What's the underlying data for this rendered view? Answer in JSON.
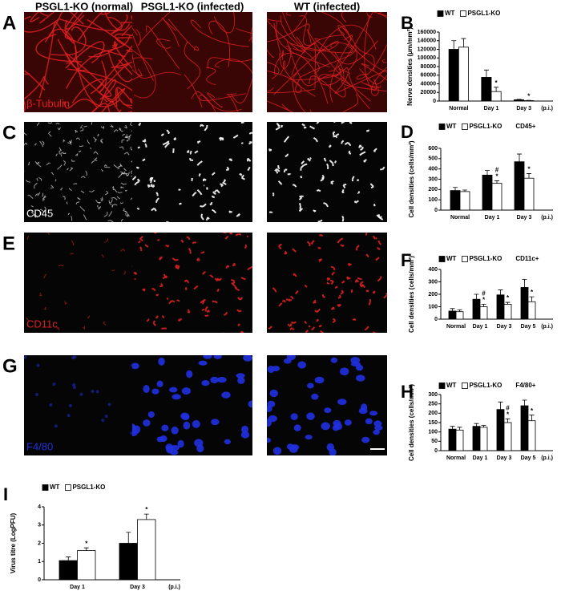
{
  "images": {
    "columns": [
      "PSGL1-KO (normal)",
      "PSGL1-KO (infected)",
      "WT (infected)"
    ],
    "rows": [
      {
        "panel": "A",
        "label": "β-Tubulin",
        "color": "#e02020"
      },
      {
        "panel": "C",
        "label": "CD45",
        "color": "#ffffff"
      },
      {
        "panel": "E",
        "label": "CD11c",
        "color": "#e02020"
      },
      {
        "panel": "G",
        "label": "F4/80",
        "color": "#2030e0"
      }
    ]
  },
  "chart_data": [
    {
      "type": "bar",
      "panel": "B",
      "ylabel": "Nerve densities (μm/mm²)",
      "x_suffix": "(p.i.)",
      "categories": [
        "Normal",
        "Day 1",
        "Day 3"
      ],
      "ylim": [
        0,
        160000
      ],
      "yticks": [
        0,
        20000,
        40000,
        60000,
        80000,
        100000,
        120000,
        140000,
        160000
      ],
      "series": [
        {
          "name": "WT",
          "color": "#000000",
          "values": [
            120000,
            55000,
            3000
          ],
          "errors": [
            20000,
            17000,
            1000
          ],
          "markers": [
            null,
            null,
            null
          ]
        },
        {
          "name": "PSGL1-KO",
          "color": "#ffffff",
          "values": [
            125000,
            22000,
            1000
          ],
          "errors": [
            20000,
            10000,
            500
          ],
          "markers": [
            null,
            [
              "*"
            ],
            [
              "*"
            ]
          ]
        }
      ]
    },
    {
      "type": "bar",
      "panel": "D",
      "title": "CD45+",
      "ylabel": "Cell densities (cells/mm²)",
      "x_suffix": "(p.i.)",
      "categories": [
        "Normal",
        "Day 1",
        "Day 3"
      ],
      "ylim": [
        0,
        600
      ],
      "yticks": [
        0,
        100,
        200,
        300,
        400,
        500,
        600
      ],
      "series": [
        {
          "name": "WT",
          "color": "#000000",
          "values": [
            190,
            340,
            470
          ],
          "errors": [
            30,
            45,
            75
          ],
          "markers": [
            null,
            null,
            null
          ]
        },
        {
          "name": "PSGL1-KO",
          "color": "#ffffff",
          "values": [
            180,
            260,
            310
          ],
          "errors": [
            15,
            25,
            45
          ],
          "markers": [
            null,
            [
              "#",
              "*"
            ],
            [
              "*"
            ]
          ]
        }
      ]
    },
    {
      "type": "bar",
      "panel": "F",
      "title": "CD11c+",
      "ylabel": "Cell densities (cells/mm²)",
      "x_suffix": "(p.i.)",
      "categories": [
        "Normal",
        "Day 1",
        "Day 3",
        "Day 5"
      ],
      "ylim": [
        0,
        400
      ],
      "yticks": [
        0,
        100,
        200,
        300,
        400
      ],
      "series": [
        {
          "name": "WT",
          "color": "#000000",
          "values": [
            65,
            160,
            195,
            255
          ],
          "errors": [
            20,
            40,
            40,
            65
          ],
          "markers": [
            null,
            null,
            null,
            null
          ]
        },
        {
          "name": "PSGL1-KO",
          "color": "#ffffff",
          "values": [
            60,
            100,
            120,
            140
          ],
          "errors": [
            15,
            20,
            15,
            40
          ],
          "markers": [
            null,
            [
              "#",
              "*"
            ],
            [
              "*"
            ],
            [
              "*"
            ]
          ]
        }
      ]
    },
    {
      "type": "bar",
      "panel": "H",
      "title": "F4/80+",
      "ylabel": "Cell densities (cells/mm²)",
      "x_suffix": "(p.i.)",
      "categories": [
        "Normal",
        "Day 1",
        "Day 3",
        "Day 5"
      ],
      "ylim": [
        0,
        300
      ],
      "yticks": [
        0,
        50,
        100,
        150,
        200,
        250,
        300
      ],
      "series": [
        {
          "name": "WT",
          "color": "#000000",
          "values": [
            115,
            130,
            220,
            240
          ],
          "errors": [
            15,
            15,
            40,
            30
          ],
          "markers": [
            null,
            null,
            null,
            null
          ]
        },
        {
          "name": "PSGL1-KO",
          "color": "#ffffff",
          "values": [
            110,
            125,
            150,
            160
          ],
          "errors": [
            15,
            10,
            20,
            30
          ],
          "markers": [
            null,
            null,
            [
              "#",
              "*"
            ],
            [
              "*"
            ]
          ]
        }
      ]
    },
    {
      "type": "bar",
      "panel": "I",
      "ylabel": "Virus titre (LogPFU)",
      "x_suffix": "(p.i.)",
      "categories": [
        "Day 1",
        "Day 3"
      ],
      "ylim": [
        0,
        4
      ],
      "yticks": [
        0,
        1,
        2,
        3,
        4
      ],
      "series": [
        {
          "name": "WT",
          "color": "#000000",
          "values": [
            1.05,
            2.0
          ],
          "errors": [
            0.2,
            0.6
          ],
          "markers": [
            null,
            null
          ]
        },
        {
          "name": "PSGL1-KO",
          "color": "#ffffff",
          "values": [
            1.6,
            3.3
          ],
          "errors": [
            0.15,
            0.3
          ],
          "markers": [
            [
              "*"
            ],
            [
              "*"
            ]
          ]
        }
      ]
    }
  ]
}
